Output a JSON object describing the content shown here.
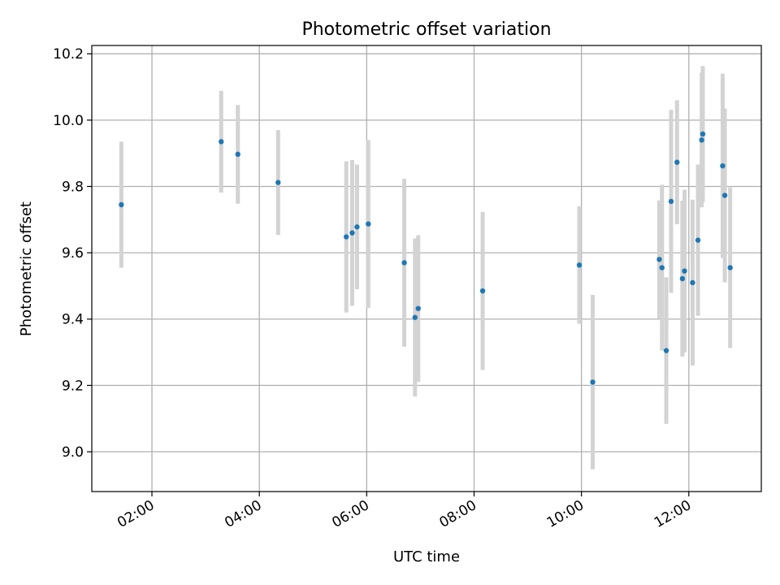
{
  "chart_data": {
    "type": "scatter",
    "title": "Photometric offset variation",
    "xlabel": "UTC time",
    "ylabel": "Photometric offset",
    "x_unit": "hours UTC",
    "xlim": [
      0.88,
      13.35
    ],
    "ylim": [
      8.88,
      10.225
    ],
    "xticks": [
      {
        "value": 2,
        "label": "02:00"
      },
      {
        "value": 4,
        "label": "04:00"
      },
      {
        "value": 6,
        "label": "06:00"
      },
      {
        "value": 8,
        "label": "08:00"
      },
      {
        "value": 10,
        "label": "10:00"
      },
      {
        "value": 12,
        "label": "12:00"
      }
    ],
    "yticks": [
      {
        "value": 9.0,
        "label": "9.0"
      },
      {
        "value": 9.2,
        "label": "9.2"
      },
      {
        "value": 9.4,
        "label": "9.4"
      },
      {
        "value": 9.6,
        "label": "9.6"
      },
      {
        "value": 9.8,
        "label": "9.8"
      },
      {
        "value": 10.0,
        "label": "10.0"
      },
      {
        "value": 10.2,
        "label": "10.2"
      }
    ],
    "grid": true,
    "colors": {
      "point": "#1f77b4",
      "error_bar": "#d3d3d3"
    },
    "points": [
      {
        "x": 1.43,
        "y": 9.745,
        "err": 0.19
      },
      {
        "x": 3.29,
        "y": 9.935,
        "err": 0.153
      },
      {
        "x": 3.6,
        "y": 9.897,
        "err": 0.149
      },
      {
        "x": 4.35,
        "y": 9.812,
        "err": 0.158
      },
      {
        "x": 5.62,
        "y": 9.648,
        "err": 0.228
      },
      {
        "x": 5.73,
        "y": 9.66,
        "err": 0.22
      },
      {
        "x": 5.82,
        "y": 9.678,
        "err": 0.188
      },
      {
        "x": 6.03,
        "y": 9.687,
        "err": 0.253
      },
      {
        "x": 6.7,
        "y": 9.57,
        "err": 0.253
      },
      {
        "x": 6.9,
        "y": 9.405,
        "err": 0.238
      },
      {
        "x": 6.96,
        "y": 9.432,
        "err": 0.221
      },
      {
        "x": 8.16,
        "y": 9.485,
        "err": 0.238
      },
      {
        "x": 9.96,
        "y": 9.563,
        "err": 0.177
      },
      {
        "x": 10.21,
        "y": 9.21,
        "err": 0.263
      },
      {
        "x": 11.45,
        "y": 9.58,
        "err": 0.178
      },
      {
        "x": 11.5,
        "y": 9.555,
        "err": 0.25
      },
      {
        "x": 11.58,
        "y": 9.305,
        "err": 0.221
      },
      {
        "x": 11.67,
        "y": 9.755,
        "err": 0.276
      },
      {
        "x": 11.78,
        "y": 9.873,
        "err": 0.187
      },
      {
        "x": 11.88,
        "y": 9.522,
        "err": 0.235
      },
      {
        "x": 11.92,
        "y": 9.545,
        "err": 0.245
      },
      {
        "x": 12.07,
        "y": 9.51,
        "err": 0.25
      },
      {
        "x": 12.17,
        "y": 9.638,
        "err": 0.228
      },
      {
        "x": 12.24,
        "y": 9.94,
        "err": 0.203
      },
      {
        "x": 12.26,
        "y": 9.958,
        "err": 0.205
      },
      {
        "x": 12.63,
        "y": 9.862,
        "err": 0.278
      },
      {
        "x": 12.67,
        "y": 9.773,
        "err": 0.262
      },
      {
        "x": 12.77,
        "y": 9.555,
        "err": 0.242
      }
    ]
  }
}
